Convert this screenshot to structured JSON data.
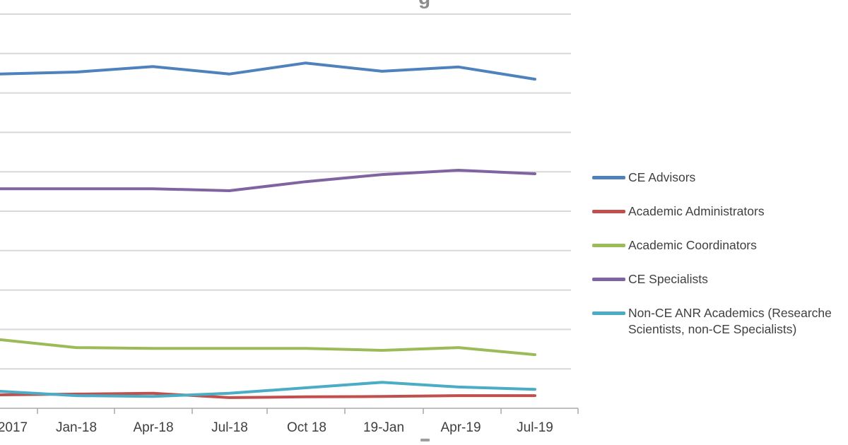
{
  "page": {
    "description": "Cropped line chart (Excel-style). Chart title and y-axis labels are cut off by the crop; legend on the right is clipped by the image edge.",
    "background_color": "#ffffff"
  },
  "title_fragment": {
    "char": "g",
    "color": "#8c8c8c"
  },
  "chart_data": {
    "type": "line",
    "title": "",
    "xlabel": "",
    "ylabel": "",
    "categories": [
      "2017",
      "Jan-18",
      "Apr-18",
      "Jul-18",
      "Oct 18",
      "19-Jan",
      "Apr-19",
      "Jul-19"
    ],
    "series": [
      {
        "name": "CE Advisors",
        "color": "#4f81bd",
        "values": [
          8.48,
          8.53,
          8.67,
          8.48,
          8.76,
          8.55,
          8.66,
          8.35
        ]
      },
      {
        "name": "Academic Administrators",
        "color": "#c0504d",
        "values": [
          0.34,
          0.36,
          0.38,
          0.27,
          0.29,
          0.3,
          0.32,
          0.32
        ]
      },
      {
        "name": "Academic Coordinators",
        "color": "#9bbb59",
        "values": [
          1.74,
          1.54,
          1.52,
          1.52,
          1.52,
          1.47,
          1.54,
          1.36
        ]
      },
      {
        "name": "CE Specialists",
        "color": "#8064a2",
        "values": [
          5.57,
          5.57,
          5.57,
          5.52,
          5.75,
          5.93,
          6.04,
          5.95
        ]
      },
      {
        "name": "Non-CE ANR Academics (Researche Scientists, non-CE Specialists)",
        "color": "#4bacc6",
        "values": [
          0.43,
          0.32,
          0.3,
          0.38,
          0.52,
          0.66,
          0.54,
          0.48
        ]
      }
    ],
    "y_axis": {
      "labels_visible": false,
      "units": "gridline intervals above x-axis (y tick labels cropped out of image)",
      "range": [
        0,
        10
      ],
      "gridline_count": 10
    },
    "x_axis": {
      "labels_visible": true,
      "tick_marks": true,
      "first_label_partially_cropped": true
    },
    "grid": true,
    "legend_position": "right",
    "colors": {
      "gridline": "#d8d8d8",
      "axis_line": "#bfbfbf",
      "tick": "#a9a9a9",
      "axis_label_text": "#3f3f3f",
      "legend_text": "#404040"
    }
  },
  "legend": {
    "items": [
      {
        "label": "CE Advisors",
        "color": "#4f81bd"
      },
      {
        "label": "Academic Administrators",
        "color": "#c0504d"
      },
      {
        "label": "Academic Coordinators",
        "color": "#9bbb59"
      },
      {
        "label": "CE Specialists",
        "color": "#8064a2"
      },
      {
        "label": "Non-CE ANR Academics (Researche\nScientists, non-CE Specialists)",
        "color": "#4bacc6"
      }
    ]
  }
}
